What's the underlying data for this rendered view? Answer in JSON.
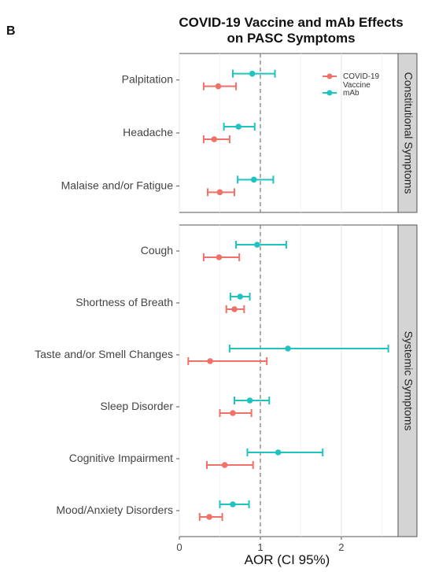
{
  "panel_tag": "B",
  "title_lines": [
    "COVID-19 Vaccine and mAb Effects",
    "on PASC Symptoms"
  ],
  "colors": {
    "vaccine": "#f07167",
    "mab": "#1fc3c0"
  },
  "chart_data": {
    "type": "forest",
    "xlabel": "AOR (CI 95%)",
    "xlim": [
      0,
      2.7
    ],
    "x_ticks": [
      0,
      1,
      2
    ],
    "x_tick_labels": [
      "0",
      "1",
      "2"
    ],
    "reference_line": 1,
    "legend": {
      "placement": "top-right",
      "entries": [
        {
          "series": "vaccine",
          "lines": [
            "COVID-19",
            "Vaccine"
          ]
        },
        {
          "series": "mab",
          "lines": [
            "mAb"
          ]
        }
      ]
    },
    "panels": [
      {
        "strip": "Constitutional Symptoms",
        "rows": [
          {
            "label": "Palpitation",
            "vaccine": {
              "est": 0.48,
              "lo": 0.3,
              "hi": 0.7
            },
            "mab": {
              "est": 0.9,
              "lo": 0.66,
              "hi": 1.18
            }
          },
          {
            "label": "Headache",
            "vaccine": {
              "est": 0.43,
              "lo": 0.3,
              "hi": 0.62
            },
            "mab": {
              "est": 0.73,
              "lo": 0.55,
              "hi": 0.93
            }
          },
          {
            "label": "Malaise and/or Fatigue",
            "vaccine": {
              "est": 0.5,
              "lo": 0.35,
              "hi": 0.68
            },
            "mab": {
              "est": 0.92,
              "lo": 0.72,
              "hi": 1.16
            }
          }
        ]
      },
      {
        "strip": "Systemic Symptoms",
        "rows": [
          {
            "label": "Cough",
            "vaccine": {
              "est": 0.49,
              "lo": 0.3,
              "hi": 0.74
            },
            "mab": {
              "est": 0.96,
              "lo": 0.7,
              "hi": 1.32
            }
          },
          {
            "label": "Shortness of Breath",
            "vaccine": {
              "est": 0.68,
              "lo": 0.58,
              "hi": 0.8
            },
            "mab": {
              "est": 0.75,
              "lo": 0.63,
              "hi": 0.87
            }
          },
          {
            "label": "Taste and/or Smell Changes",
            "vaccine": {
              "est": 0.38,
              "lo": 0.11,
              "hi": 1.08
            },
            "mab": {
              "est": 1.34,
              "lo": 0.62,
              "hi": 2.58
            }
          },
          {
            "label": "Sleep Disorder",
            "vaccine": {
              "est": 0.66,
              "lo": 0.5,
              "hi": 0.89
            },
            "mab": {
              "est": 0.87,
              "lo": 0.68,
              "hi": 1.11
            }
          },
          {
            "label": "Cognitive Impairment",
            "vaccine": {
              "est": 0.56,
              "lo": 0.34,
              "hi": 0.91
            },
            "mab": {
              "est": 1.22,
              "lo": 0.84,
              "hi": 1.77
            }
          },
          {
            "label": "Mood/Anxiety Disorders",
            "vaccine": {
              "est": 0.37,
              "lo": 0.25,
              "hi": 0.53
            },
            "mab": {
              "est": 0.66,
              "lo": 0.5,
              "hi": 0.86
            }
          }
        ]
      }
    ]
  }
}
